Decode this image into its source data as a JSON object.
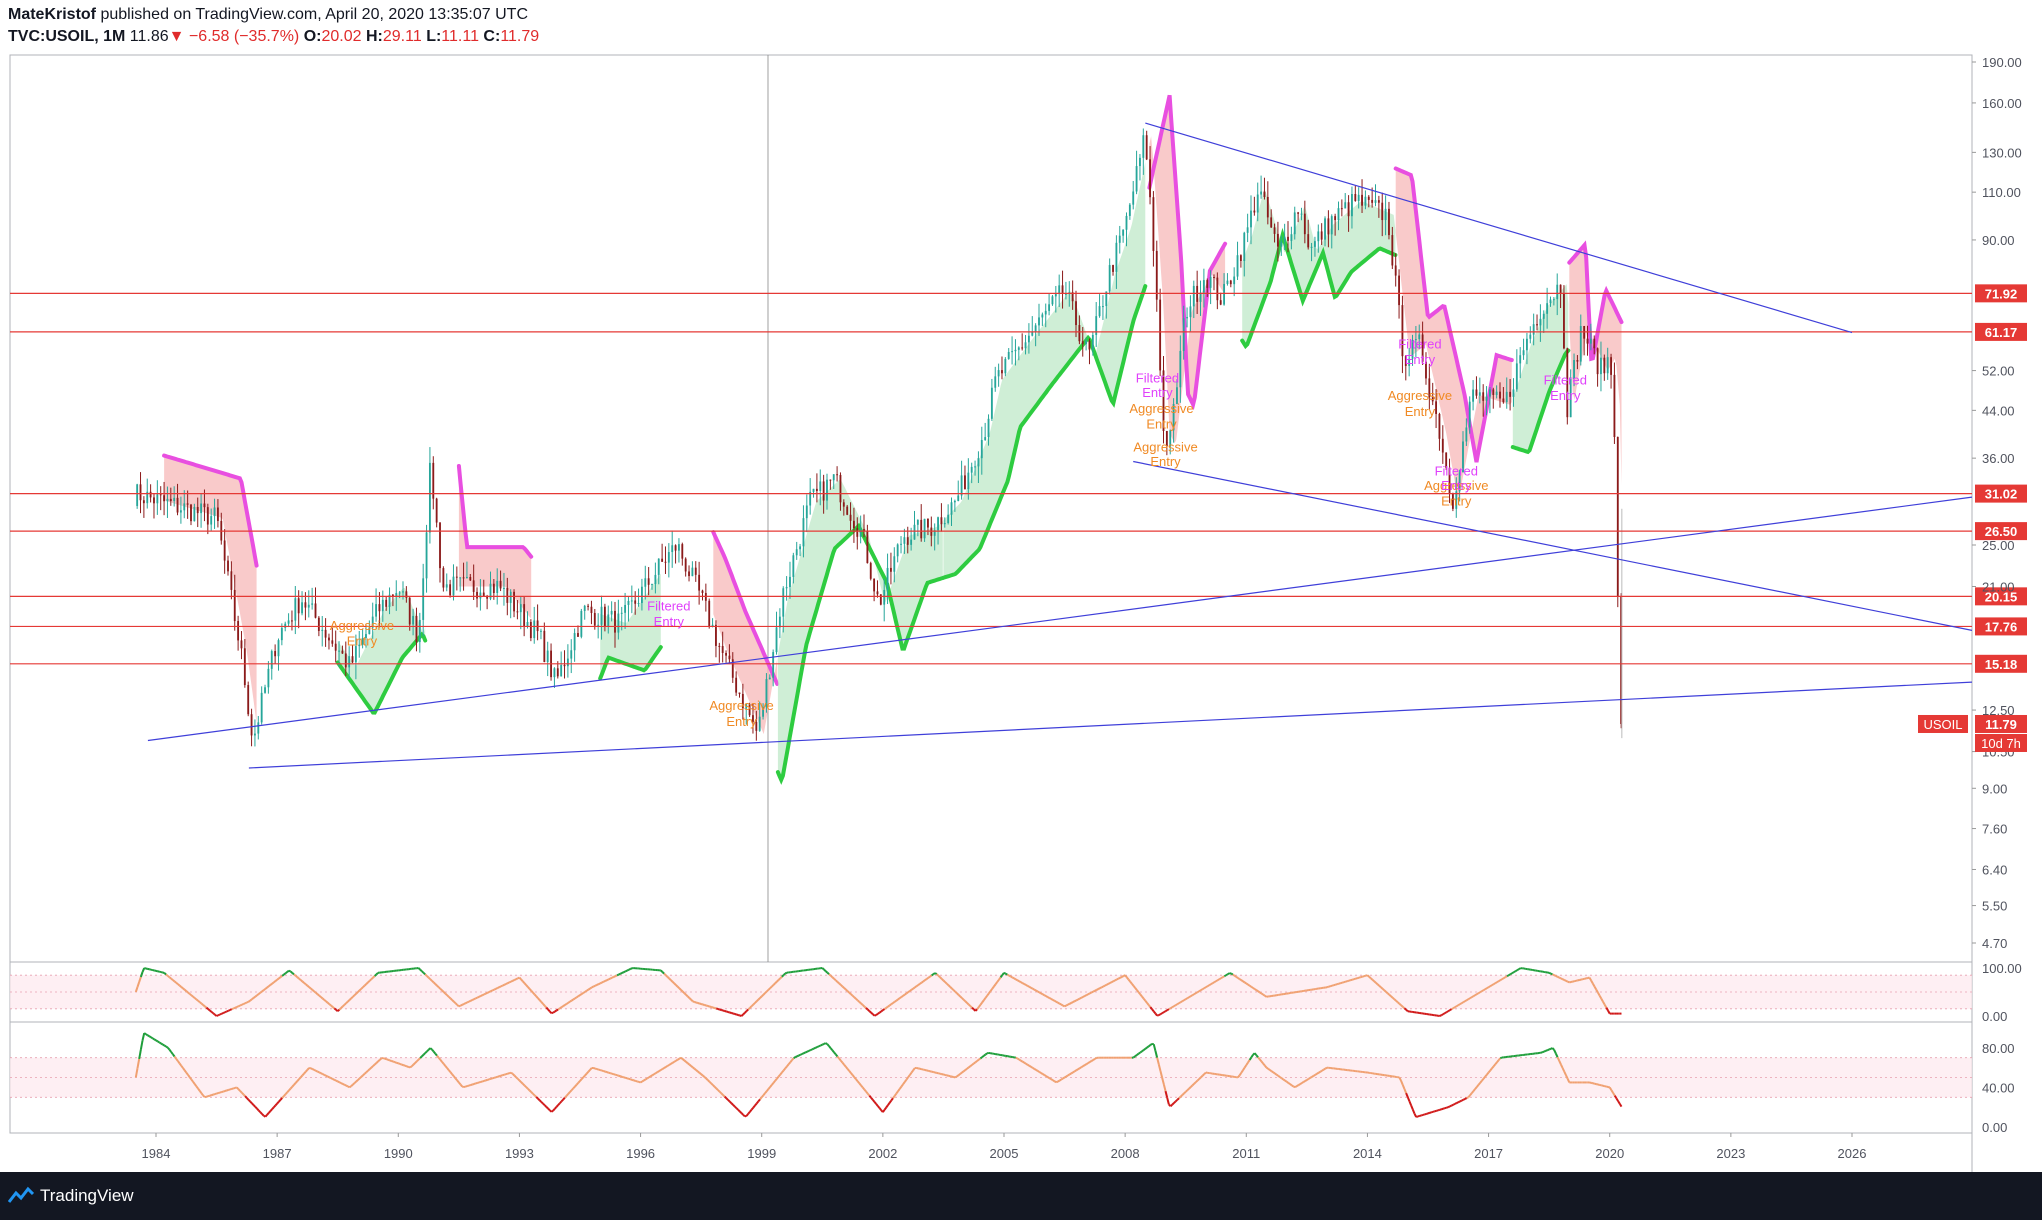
{
  "header": {
    "publisher": "MateKristof",
    "published_text": "published on TradingView.com, April 20, 2020 13:35:07 UTC",
    "symbol": "TVC:USOIL, 1M",
    "last": "11.86",
    "change": "−6.58 (−35.7%)",
    "o_label": "O:",
    "o": "20.02",
    "h_label": "H:",
    "h": "29.11",
    "l_label": "L:",
    "l": "11.11",
    "c_label": "C:",
    "c": "11.79"
  },
  "footer": {
    "brand": "TradingView"
  },
  "colors": {
    "up": "#26a69a",
    "down": "#8b1a1a",
    "hline": "#e53935",
    "trend": "#3f3fd9",
    "bull_band": "#2ecc40",
    "bear_band": "#e84fe0",
    "entry_pink": "#e040fb",
    "entry_orange": "#f08a24",
    "osc": "#f0a070"
  },
  "chart_data": {
    "type": "candlestick",
    "interval": "1M",
    "scale": "log",
    "x_ticks": [
      "1984",
      "1987",
      "1990",
      "1993",
      "1996",
      "1999",
      "2002",
      "2005",
      "2008",
      "2011",
      "2014",
      "2017",
      "2020",
      "2023",
      "2026"
    ],
    "x_tick_years": [
      1984.0,
      1987.0,
      1990.0,
      1993.0,
      1996.0,
      1999.0,
      2002.0,
      2005.0,
      2008.0,
      2011.0,
      2014.0,
      2017.0,
      2020.0,
      2023.0,
      2026.0
    ],
    "y_ticks": [
      "190.00",
      "160.00",
      "130.00",
      "110.00",
      "90.00",
      "52.00",
      "44.00",
      "36.00",
      "25.00",
      "21.00",
      "12.50",
      "10.50",
      "9.00",
      "7.60",
      "6.40",
      "5.50",
      "4.70"
    ],
    "y_tick_values": [
      190,
      160,
      130,
      110,
      90,
      52,
      44,
      36,
      25,
      21,
      12.5,
      10.5,
      9,
      7.6,
      6.4,
      5.5,
      4.7
    ],
    "horizontal_levels": [
      {
        "label": "71.92",
        "value": 71.92
      },
      {
        "label": "61.17",
        "value": 61.17
      },
      {
        "label": "31.02",
        "value": 31.02
      },
      {
        "label": "26.50",
        "value": 26.5
      },
      {
        "label": "20.15",
        "value": 20.15
      },
      {
        "label": "17.76",
        "value": 17.76
      },
      {
        "label": "15.18",
        "value": 15.18
      }
    ],
    "price_tag": {
      "symbol": "USOIL",
      "value": "11.79",
      "countdown": "10d 7h"
    },
    "trendlines": [
      {
        "from": [
          2008.5,
          147
        ],
        "to": [
          2026,
          61
        ]
      },
      {
        "from": [
          2008.2,
          35.5
        ],
        "to": [
          2031,
          16.3
        ]
      },
      {
        "from": [
          1983.8,
          11.0
        ],
        "to": [
          2031,
          32
        ]
      },
      {
        "from": [
          1986.3,
          9.8
        ],
        "to": [
          2031,
          14.3
        ]
      }
    ],
    "monthly_close_anchors": [
      [
        1983.5,
        31
      ],
      [
        1985.5,
        28
      ],
      [
        1986.1,
        16
      ],
      [
        1986.4,
        11
      ],
      [
        1987.0,
        17
      ],
      [
        1987.6,
        20
      ],
      [
        1988.8,
        15
      ],
      [
        1989.5,
        19
      ],
      [
        1990.0,
        21
      ],
      [
        1990.5,
        17
      ],
      [
        1990.8,
        35
      ],
      [
        1991.1,
        21
      ],
      [
        1992.5,
        21
      ],
      [
        1993.5,
        17
      ],
      [
        1993.9,
        14
      ],
      [
        1994.6,
        19
      ],
      [
        1995.5,
        18
      ],
      [
        1996.5,
        23
      ],
      [
        1996.9,
        25
      ],
      [
        1997.5,
        20
      ],
      [
        1998.0,
        16
      ],
      [
        1998.9,
        11.3
      ],
      [
        1999.5,
        20
      ],
      [
        2000.2,
        30
      ],
      [
        2000.8,
        33
      ],
      [
        2001.5,
        26
      ],
      [
        2001.9,
        19.5
      ],
      [
        2002.5,
        26
      ],
      [
        2003.2,
        27
      ],
      [
        2003.8,
        30
      ],
      [
        2004.5,
        40
      ],
      [
        2004.8,
        50
      ],
      [
        2005.6,
        60
      ],
      [
        2006.5,
        73
      ],
      [
        2007.1,
        55
      ],
      [
        2007.6,
        78
      ],
      [
        2008.0,
        95
      ],
      [
        2008.5,
        140
      ],
      [
        2008.8,
        68
      ],
      [
        2008.95,
        40
      ],
      [
        2009.1,
        38
      ],
      [
        2009.5,
        67
      ],
      [
        2010.0,
        78
      ],
      [
        2010.4,
        70
      ],
      [
        2011.0,
        92
      ],
      [
        2011.3,
        112
      ],
      [
        2011.8,
        85
      ],
      [
        2012.3,
        104
      ],
      [
        2012.6,
        86
      ],
      [
        2013.0,
        96
      ],
      [
        2013.7,
        106
      ],
      [
        2014.5,
        100
      ],
      [
        2014.9,
        55
      ],
      [
        2015.3,
        58
      ],
      [
        2015.8,
        40
      ],
      [
        2016.1,
        30
      ],
      [
        2016.6,
        47
      ],
      [
        2017.4,
        45
      ],
      [
        2017.9,
        58
      ],
      [
        2018.3,
        68
      ],
      [
        2018.8,
        75
      ],
      [
        2018.95,
        45
      ],
      [
        2019.3,
        62
      ],
      [
        2019.8,
        52
      ],
      [
        2020.0,
        55
      ],
      [
        2020.1,
        45
      ],
      [
        2020.2,
        20.1
      ],
      [
        2020.3,
        11.79
      ]
    ],
    "annotations": [
      {
        "text": "Filtered",
        "x": 2008.8,
        "y": 49.5,
        "color": "pink"
      },
      {
        "text": "Entry",
        "x": 2008.8,
        "y": 46.5,
        "color": "pink"
      },
      {
        "text": "Aggressive",
        "x": 2008.9,
        "y": 43.5,
        "color": "orange"
      },
      {
        "text": "Entry",
        "x": 2008.9,
        "y": 40.8,
        "color": "orange"
      },
      {
        "text": "Aggressive",
        "x": 2009.0,
        "y": 37.0,
        "color": "orange"
      },
      {
        "text": "Entry",
        "x": 2009.0,
        "y": 34.8,
        "color": "orange"
      },
      {
        "text": "Filtered",
        "x": 2015.3,
        "y": 57.0,
        "color": "pink"
      },
      {
        "text": "Entry",
        "x": 2015.3,
        "y": 53.5,
        "color": "pink"
      },
      {
        "text": "Aggressive",
        "x": 2015.3,
        "y": 46.0,
        "color": "orange"
      },
      {
        "text": "Entry",
        "x": 2015.3,
        "y": 43.0,
        "color": "orange"
      },
      {
        "text": "Filtered",
        "x": 2016.2,
        "y": 33.5,
        "color": "pink"
      },
      {
        "text": "Aggressive",
        "x": 2016.2,
        "y": 31.5,
        "color": "orange"
      },
      {
        "text": "Entry",
        "x": 2016.2,
        "y": 31.5,
        "color": "pink"
      },
      {
        "text": "Entry",
        "x": 2016.2,
        "y": 29.5,
        "color": "orange"
      },
      {
        "text": "Filtered",
        "x": 2018.9,
        "y": 49.0,
        "color": "pink"
      },
      {
        "text": "Entry",
        "x": 2018.9,
        "y": 46.0,
        "color": "pink"
      },
      {
        "text": "Filtered",
        "x": 1996.7,
        "y": 19.0,
        "color": "pink"
      },
      {
        "text": "Entry",
        "x": 1996.7,
        "y": 17.8,
        "color": "pink"
      },
      {
        "text": "Aggressive",
        "x": 1989.1,
        "y": 17.5,
        "color": "orange"
      },
      {
        "text": "Entry",
        "x": 1989.1,
        "y": 16.4,
        "color": "orange"
      },
      {
        "text": "Aggressive",
        "x": 1998.5,
        "y": 12.5,
        "color": "orange"
      },
      {
        "text": "Entry",
        "x": 1998.5,
        "y": 11.7,
        "color": "orange"
      }
    ],
    "osc1": {
      "y_ticks": [
        "100.00",
        "0.00"
      ],
      "y_tick_values": [
        100,
        0
      ],
      "ylim": [
        0,
        100
      ],
      "anchors": [
        [
          1983.5,
          50
        ],
        [
          1983.7,
          100
        ],
        [
          1984.2,
          90
        ],
        [
          1985.5,
          0
        ],
        [
          1986.3,
          30
        ],
        [
          1987.3,
          95
        ],
        [
          1988.5,
          10
        ],
        [
          1989.5,
          90
        ],
        [
          1990.5,
          100
        ],
        [
          1991.5,
          20
        ],
        [
          1993.0,
          80
        ],
        [
          1993.8,
          5
        ],
        [
          1994.8,
          60
        ],
        [
          1995.8,
          100
        ],
        [
          1996.5,
          95
        ],
        [
          1997.3,
          30
        ],
        [
          1998.5,
          0
        ],
        [
          1999.6,
          90
        ],
        [
          2000.5,
          100
        ],
        [
          2001.8,
          0
        ],
        [
          2003.3,
          90
        ],
        [
          2004.3,
          10
        ],
        [
          2005.0,
          90
        ],
        [
          2006.5,
          20
        ],
        [
          2008.0,
          85
        ],
        [
          2008.8,
          0
        ],
        [
          2010.0,
          60
        ],
        [
          2010.6,
          90
        ],
        [
          2011.5,
          40
        ],
        [
          2013.0,
          60
        ],
        [
          2014.0,
          85
        ],
        [
          2015.0,
          10
        ],
        [
          2015.8,
          0
        ],
        [
          2016.8,
          50
        ],
        [
          2017.8,
          100
        ],
        [
          2018.5,
          90
        ],
        [
          2019.0,
          70
        ],
        [
          2019.5,
          80
        ],
        [
          2020.0,
          5
        ],
        [
          2020.3,
          5
        ]
      ]
    },
    "osc2": {
      "y_ticks": [
        "80.00",
        "40.00",
        "0.00"
      ],
      "y_tick_values": [
        80,
        40,
        0
      ],
      "ylim": [
        0,
        100
      ],
      "anchors": [
        [
          1983.5,
          50
        ],
        [
          1983.7,
          95
        ],
        [
          1984.3,
          80
        ],
        [
          1985.2,
          30
        ],
        [
          1986.0,
          40
        ],
        [
          1986.7,
          10
        ],
        [
          1987.8,
          60
        ],
        [
          1988.8,
          40
        ],
        [
          1989.6,
          70
        ],
        [
          1990.3,
          60
        ],
        [
          1990.8,
          80
        ],
        [
          1991.6,
          40
        ],
        [
          1992.8,
          55
        ],
        [
          1993.8,
          15
        ],
        [
          1994.8,
          60
        ],
        [
          1996.0,
          45
        ],
        [
          1997.0,
          70
        ],
        [
          1997.6,
          50
        ],
        [
          1998.6,
          10
        ],
        [
          1999.8,
          70
        ],
        [
          2000.6,
          85
        ],
        [
          2001.6,
          35
        ],
        [
          2002.0,
          15
        ],
        [
          2002.8,
          60
        ],
        [
          2003.8,
          50
        ],
        [
          2004.6,
          75
        ],
        [
          2005.3,
          70
        ],
        [
          2006.3,
          45
        ],
        [
          2007.3,
          70
        ],
        [
          2008.2,
          70
        ],
        [
          2008.7,
          85
        ],
        [
          2009.1,
          20
        ],
        [
          2010.0,
          55
        ],
        [
          2010.8,
          50
        ],
        [
          2011.2,
          75
        ],
        [
          2011.5,
          60
        ],
        [
          2012.2,
          40
        ],
        [
          2013.0,
          60
        ],
        [
          2014.0,
          55
        ],
        [
          2014.8,
          50
        ],
        [
          2015.2,
          10
        ],
        [
          2016.0,
          20
        ],
        [
          2016.5,
          30
        ],
        [
          2017.3,
          70
        ],
        [
          2018.3,
          75
        ],
        [
          2018.6,
          80
        ],
        [
          2019.0,
          45
        ],
        [
          2019.5,
          45
        ],
        [
          2020.0,
          40
        ],
        [
          2020.3,
          20
        ]
      ]
    }
  }
}
